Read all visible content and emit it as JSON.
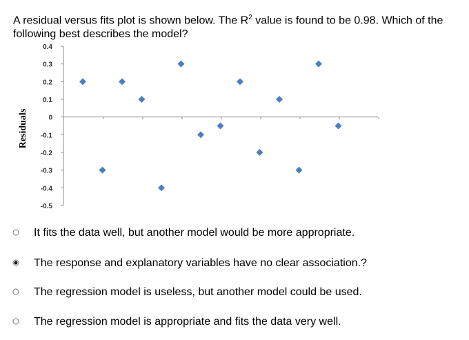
{
  "question": {
    "text_before": "A residual versus fits plot is shown below. The R",
    "superscript": "2",
    "text_after": " value is found to be 0.98. Which of the following best describes the model?"
  },
  "chart_data": {
    "type": "scatter",
    "title": "",
    "xlabel": "",
    "ylabel": "Residuals",
    "ylim": [
      -0.5,
      0.4
    ],
    "y_ticks": [
      "0.4",
      "0.3",
      "0.2",
      "0.1",
      "0",
      "-0.1",
      "-0.2",
      "-0.3",
      "-0.4",
      "-0.5"
    ],
    "x": [
      1,
      2,
      3,
      4,
      5,
      6,
      7,
      8,
      9,
      10,
      11,
      12,
      13,
      14
    ],
    "values": [
      0.2,
      -0.3,
      0.2,
      0.1,
      -0.4,
      0.3,
      -0.1,
      -0.05,
      0.2,
      -0.2,
      0.1,
      -0.3,
      0.3,
      -0.05
    ],
    "marker_color": "#4a7fc1",
    "grid": false
  },
  "options": [
    {
      "label": "It fits the data well, but another model would be more appropriate.",
      "selected": false
    },
    {
      "label": "The response and explanatory variables have no clear association.?",
      "selected": true
    },
    {
      "label": "The regression model is useless, but another model could be used.",
      "selected": false
    },
    {
      "label": "The regression model is appropriate and fits the data very well.",
      "selected": false
    }
  ]
}
